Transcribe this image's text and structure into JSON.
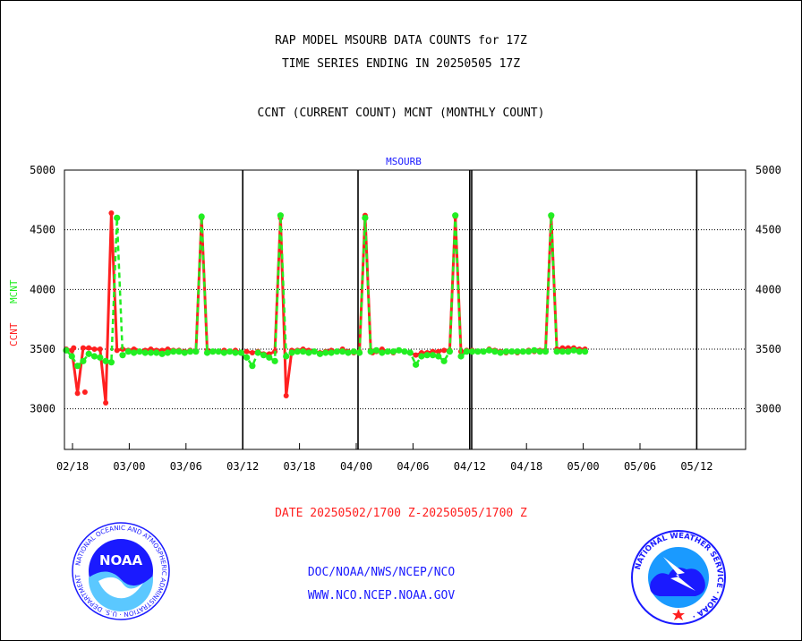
{
  "header": {
    "line1": "RAP MODEL MSOURB DATA COUNTS for 17Z",
    "line2": "TIME SERIES ENDING IN 20250505 17Z",
    "line3": "CCNT (CURRENT COUNT) MCNT (MONTHLY COUNT)"
  },
  "footer": {
    "date_range": "DATE 20250502/1700 Z-20250505/1700 Z",
    "org": "DOC/NOAA/NWS/NCEP/NCO",
    "url": "WWW.NCO.NCEP.NOAA.GOV"
  },
  "logos": {
    "noaa_text": "NOAA",
    "noaa_ring_text": "NATIONAL OCEANIC AND ATMOSPHERIC ADMINISTRATION · U.S. DEPARTMENT OF COMMERCE ·",
    "nws_ring_text": "NATIONAL WEATHER SERVICE · NOAA ·"
  },
  "colors": {
    "ccnt": "#ff2020",
    "mcnt": "#22ee22",
    "title": "#1a1aff",
    "axis": "#000000"
  },
  "chart_data": {
    "type": "line",
    "title": "MSOURB",
    "ylabel_parts": [
      "CCNT",
      "MCNT"
    ],
    "ylim": [
      2660,
      5000
    ],
    "yticks": [
      3000,
      3500,
      4000,
      4500,
      5000
    ],
    "xticks": [
      "02/18",
      "03/00",
      "03/06",
      "03/12",
      "03/18",
      "04/00",
      "04/06",
      "04/12",
      "04/18",
      "05/00",
      "05/06",
      "05/12"
    ],
    "grid": true,
    "series": [
      {
        "name": "CCNT",
        "values": [
          3500,
          3490,
          3130,
          3510,
          3510,
          3500,
          3500,
          3050,
          4640,
          3490,
          3500,
          3490,
          3500,
          3480,
          3490,
          3500,
          3490,
          3490,
          3500,
          3490,
          3490,
          3480,
          3490,
          3480,
          4600,
          3490,
          3480,
          3480,
          3490,
          3480,
          3490,
          3470,
          3480,
          3470,
          3480,
          3460,
          3460,
          3480,
          4600,
          3110,
          3490,
          3490,
          3500,
          3490,
          3480,
          3470,
          3480,
          3490,
          3480,
          3500,
          3480,
          3470,
          3480,
          4620,
          3490,
          3480,
          3500,
          3480,
          3470,
          3490,
          3480,
          3470,
          3450,
          3470,
          3470,
          3480,
          3480,
          3490,
          3490,
          4610,
          3480,
          3490,
          3490,
          3480,
          3480,
          3500,
          3490,
          3480,
          3470,
          3480,
          3470,
          3480,
          3490,
          3480,
          3490,
          3490,
          4610,
          3500,
          3510,
          3510,
          3510,
          3500,
          3500
        ],
        "outliers": [
          [
            1,
            3510
          ],
          [
            3,
            3140
          ],
          [
            12,
            3490
          ],
          [
            54,
            3470
          ]
        ]
      },
      {
        "name": "MCNT",
        "values": [
          3490,
          3440,
          3360,
          3400,
          3460,
          3440,
          3430,
          3400,
          3390,
          4600,
          3450,
          3480,
          3470,
          3480,
          3470,
          3470,
          3470,
          3460,
          3470,
          3480,
          3480,
          3470,
          3480,
          3480,
          4610,
          3470,
          3480,
          3480,
          3470,
          3480,
          3470,
          3470,
          3430,
          3360,
          3470,
          3450,
          3430,
          3400,
          4620,
          3440,
          3470,
          3480,
          3480,
          3470,
          3480,
          3460,
          3470,
          3470,
          3480,
          3480,
          3470,
          3480,
          3470,
          4600,
          3480,
          3490,
          3470,
          3480,
          3480,
          3490,
          3480,
          3470,
          3370,
          3440,
          3450,
          3450,
          3440,
          3400,
          3480,
          4620,
          3440,
          3480,
          3480,
          3480,
          3480,
          3490,
          3480,
          3470,
          3480,
          3480,
          3480,
          3480,
          3480,
          3490,
          3480,
          3480,
          4620,
          3480,
          3480,
          3480,
          3490,
          3480,
          3480
        ]
      }
    ]
  }
}
